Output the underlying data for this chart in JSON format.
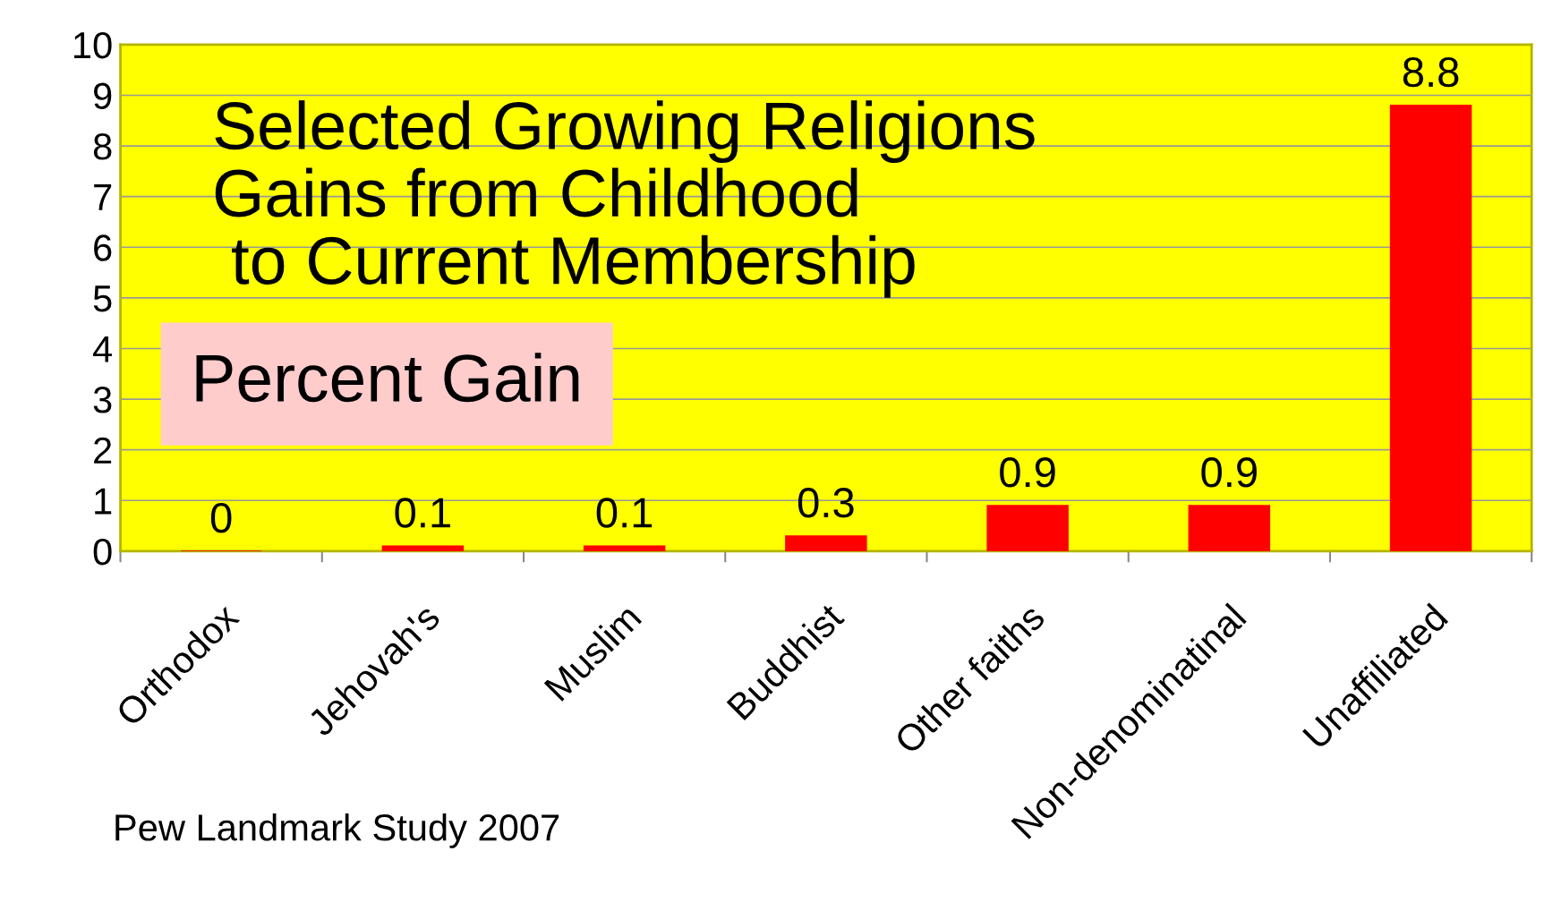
{
  "chart_data": {
    "type": "bar",
    "title": "Selected Growing Religions\nGains from Childhood\n to Current Membership",
    "ylabel": "Percent Gain",
    "categories": [
      "Orthodox",
      "Jehovah's",
      "Muslim",
      "Buddhist",
      "Other faiths",
      "Non-denominatinal",
      "Unaffiliated"
    ],
    "values": [
      0,
      0.1,
      0.1,
      0.3,
      0.9,
      0.9,
      8.8
    ],
    "color": "#ff0000",
    "ylim": [
      0,
      10
    ],
    "yticks": [
      0,
      1,
      2,
      3,
      4,
      5,
      6,
      7,
      8,
      9,
      10
    ],
    "grid": "y",
    "data_labels": true,
    "annotations": [
      "Pew Landmark Study 2007"
    ]
  }
}
